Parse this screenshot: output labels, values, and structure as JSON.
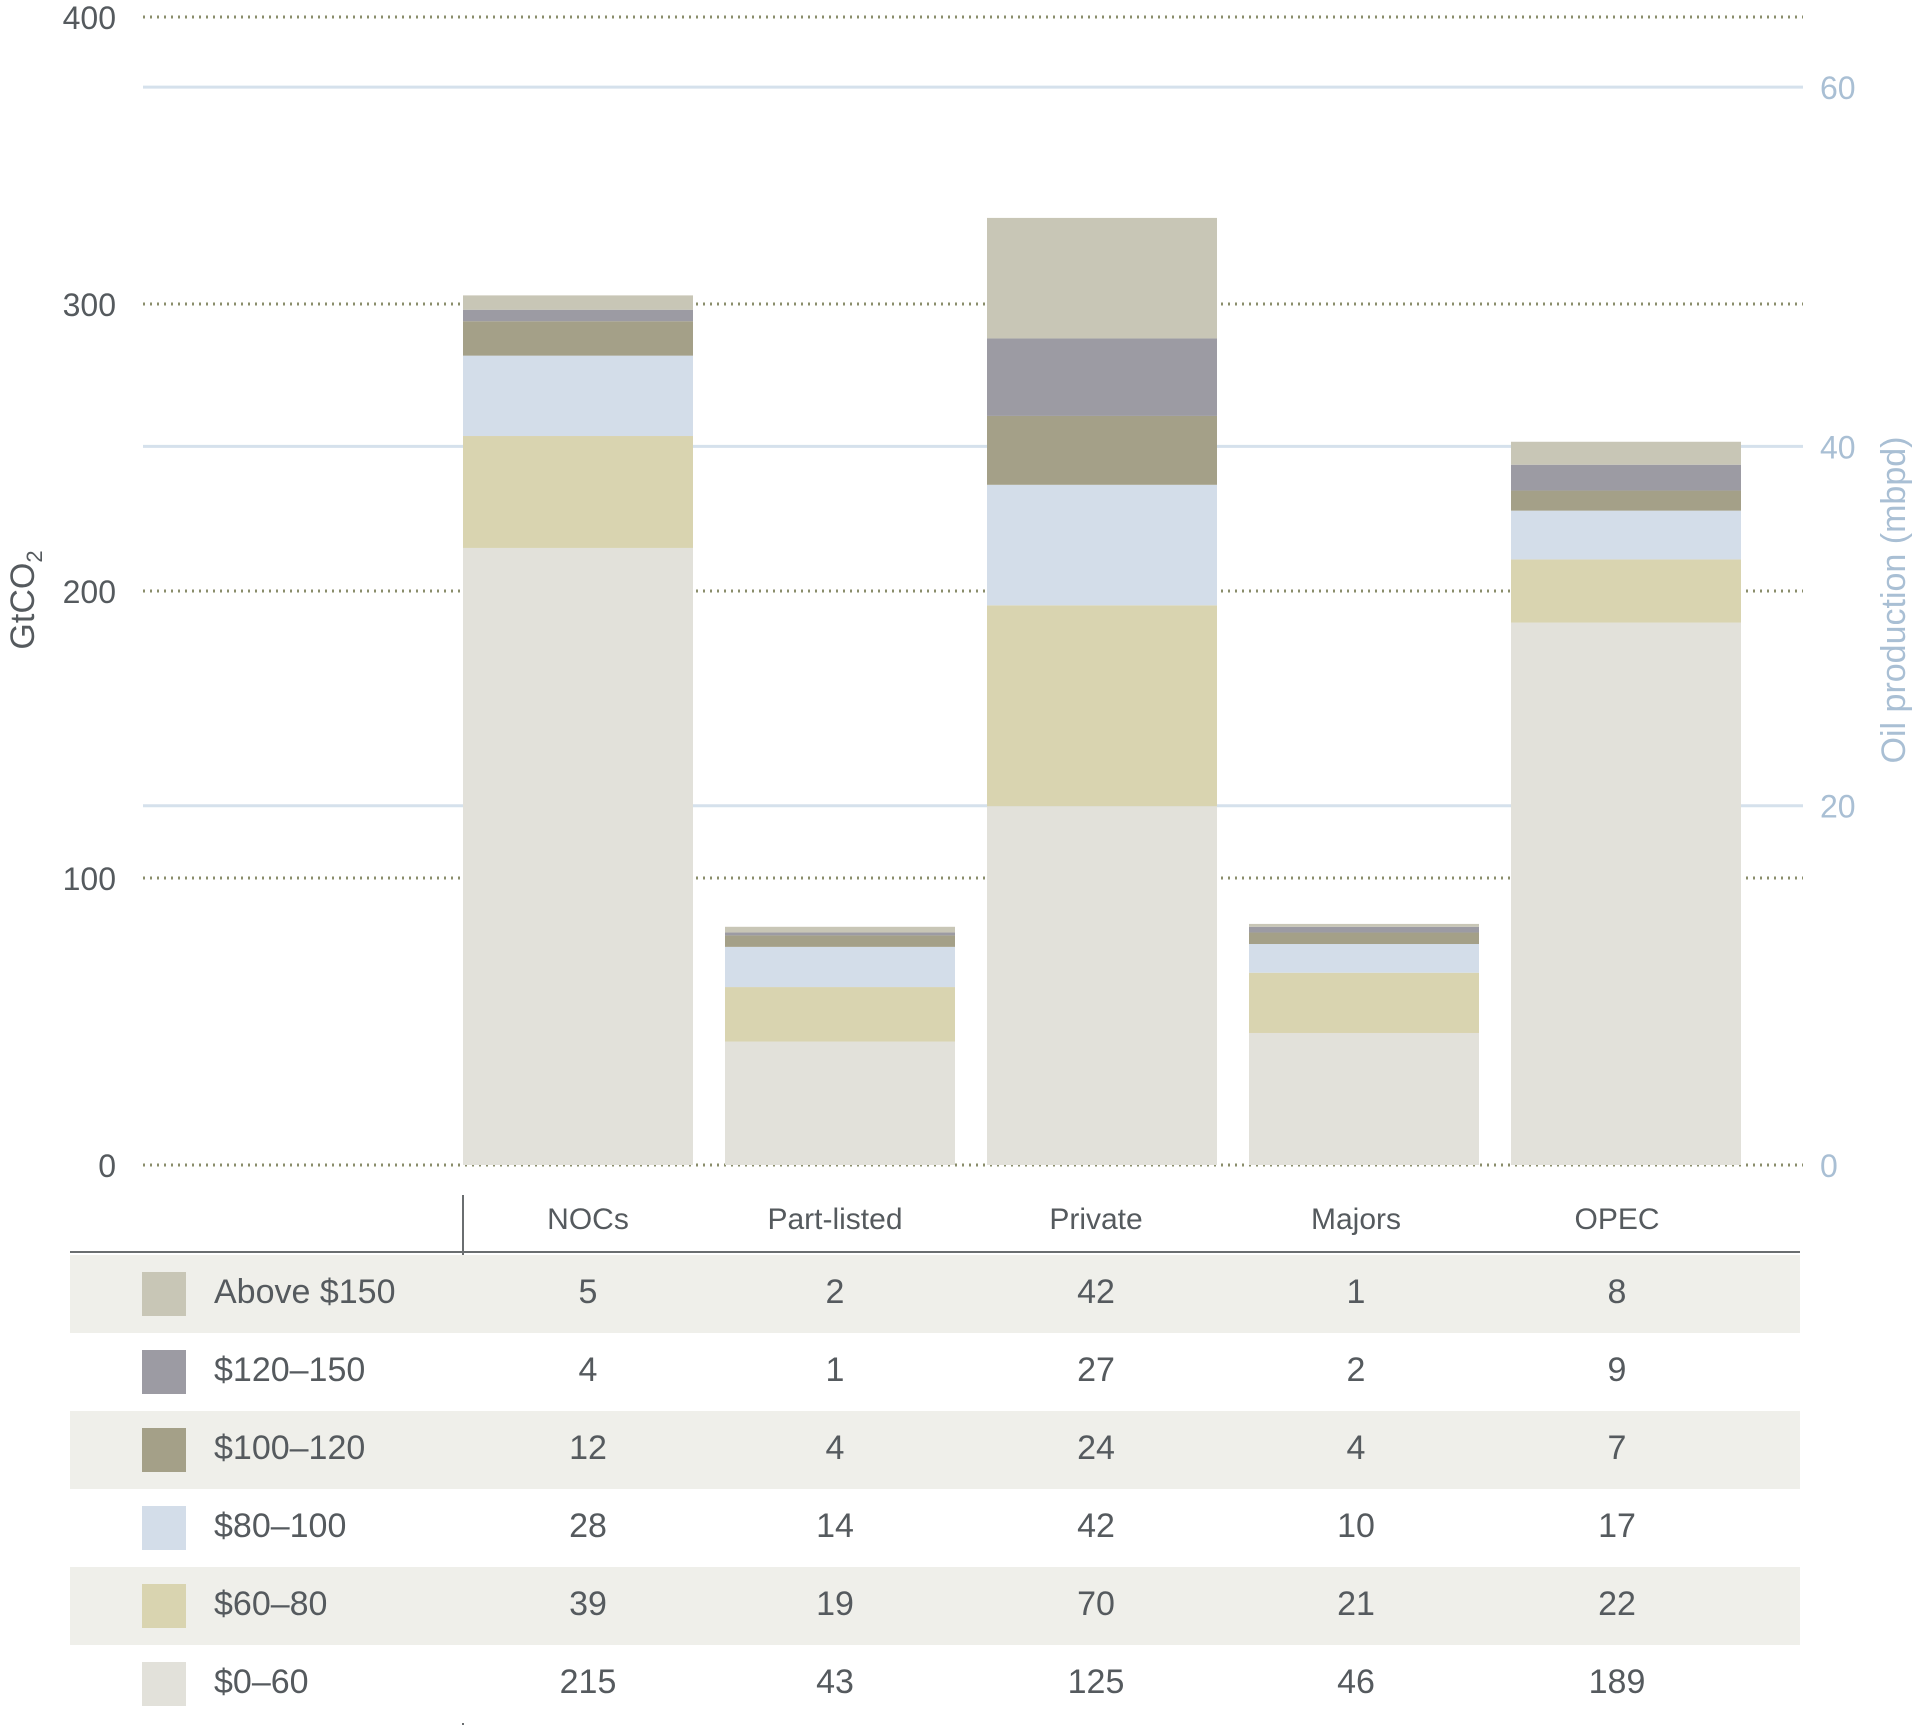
{
  "chart_data": {
    "type": "bar",
    "stacked": true,
    "categories": [
      "NOCs",
      "Part-listed",
      "Private",
      "Majors",
      "OPEC"
    ],
    "series": [
      {
        "name": "$0–60",
        "color": "#e2e1da",
        "values": [
          215,
          43,
          125,
          46,
          189
        ]
      },
      {
        "name": "$60–80",
        "color": "#d9d4b0",
        "values": [
          39,
          19,
          70,
          21,
          22
        ]
      },
      {
        "name": "$80–100",
        "color": "#d3dde9",
        "values": [
          28,
          14,
          42,
          10,
          17
        ]
      },
      {
        "name": "$100–120",
        "color": "#a4a088",
        "values": [
          12,
          4,
          24,
          4,
          7
        ]
      },
      {
        "name": "$120–150",
        "color": "#9c9ba3",
        "values": [
          4,
          1,
          27,
          2,
          9
        ]
      },
      {
        "name": "Above $150",
        "color": "#c8c6b6",
        "values": [
          5,
          2,
          42,
          1,
          8
        ]
      }
    ],
    "ylabel": "GtCO",
    "ylabel_subscript": "2",
    "y2label": "Oil production (mbpd)",
    "ylim": [
      0,
      400
    ],
    "yticks": [
      "0",
      "100",
      "200",
      "300",
      "400"
    ],
    "y2lim": [
      0,
      63.9
    ],
    "y2ticks": [
      "0",
      "20",
      "40",
      "60"
    ],
    "grid": true,
    "colors": {
      "left_grid": "#8a8d6b",
      "right_grid": "#d5e1ec",
      "right_axis_text": "#a9bfd4",
      "text": "#555a5e"
    }
  },
  "table": {
    "headers": [
      "NOCs",
      "Part-listed",
      "Private",
      "Majors",
      "OPEC"
    ],
    "rows": [
      {
        "label": "Above $150",
        "color": "#c8c6b6",
        "values": [
          "5",
          "2",
          "42",
          "1",
          "8"
        ]
      },
      {
        "label": "$120–150",
        "color": "#9c9ba3",
        "values": [
          "4",
          "1",
          "27",
          "2",
          "9"
        ]
      },
      {
        "label": "$100–120",
        "color": "#a4a088",
        "values": [
          "12",
          "4",
          "24",
          "4",
          "7"
        ]
      },
      {
        "label": "$80–100",
        "color": "#d3dde9",
        "values": [
          "28",
          "14",
          "42",
          "10",
          "17"
        ]
      },
      {
        "label": "$60–80",
        "color": "#d9d4b0",
        "values": [
          "39",
          "19",
          "70",
          "21",
          "22"
        ]
      },
      {
        "label": "$0–60",
        "color": "#e2e1da",
        "values": [
          "215",
          "43",
          "125",
          "46",
          "189"
        ]
      }
    ]
  }
}
